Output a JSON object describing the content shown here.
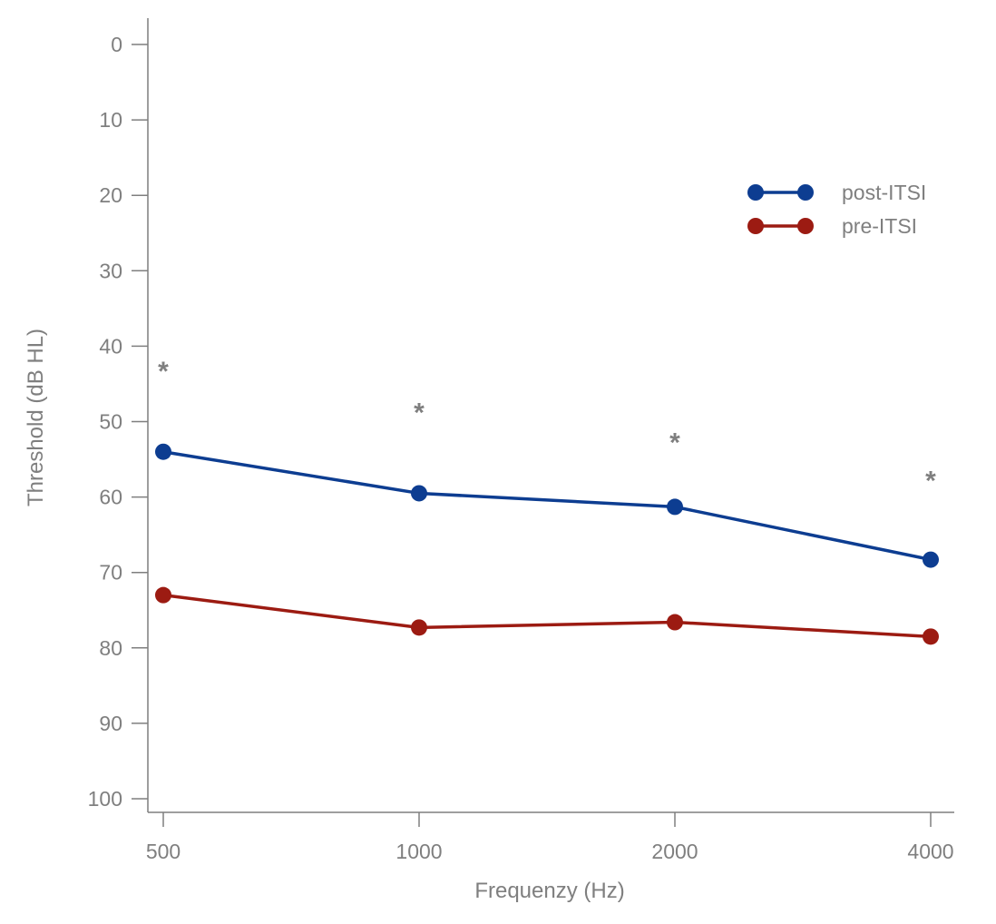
{
  "chart_data": {
    "type": "line",
    "title": "",
    "xlabel": "Frequenzy (Hz)",
    "ylabel": "Threshold (dB HL)",
    "categories": [
      "500",
      "1000",
      "2000",
      "4000"
    ],
    "ylim": [
      0,
      100
    ],
    "y_inverted": true,
    "y_ticks": [
      "0",
      "10",
      "20",
      "30",
      "40",
      "50",
      "60",
      "70",
      "80",
      "90",
      "100"
    ],
    "grid": false,
    "legend_position": "top-right",
    "series": [
      {
        "name": "post-ITSI",
        "color": "#0d3d91",
        "values": [
          54,
          59.5,
          61.3,
          68.3
        ]
      },
      {
        "name": "pre-ITSI",
        "color": "#9c1b12",
        "values": [
          73,
          77.3,
          76.6,
          78.5
        ]
      }
    ],
    "annotations": [
      {
        "text": "*",
        "x": "500",
        "y": 44.5
      },
      {
        "text": "*",
        "x": "1000",
        "y": 50
      },
      {
        "text": "*",
        "x": "2000",
        "y": 54
      },
      {
        "text": "*",
        "x": "4000",
        "y": 59
      }
    ],
    "axis_color": "#7f7f7f"
  }
}
